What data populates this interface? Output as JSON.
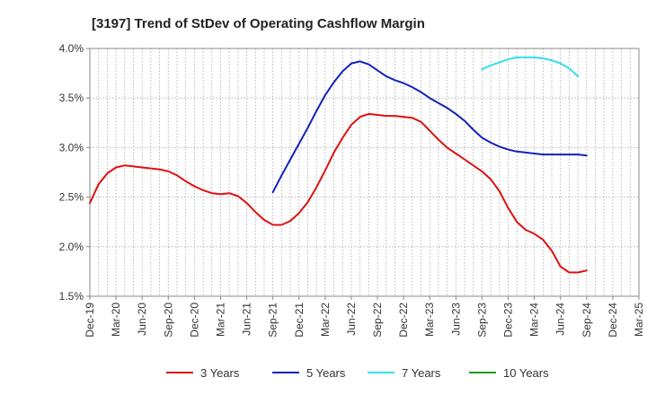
{
  "chart_data": {
    "type": "line",
    "title": "[3197]  Trend of StDev of Operating Cashflow Margin",
    "xlabel": "",
    "ylabel": "",
    "ylim": [
      1.5,
      4.0
    ],
    "y_ticks": [
      "1.5%",
      "2.0%",
      "2.5%",
      "3.0%",
      "3.5%",
      "4.0%"
    ],
    "x_ticks": [
      "Dec-19",
      "Mar-20",
      "Jun-20",
      "Sep-20",
      "Dec-20",
      "Mar-21",
      "Jun-21",
      "Sep-21",
      "Dec-21",
      "Mar-22",
      "Jun-22",
      "Sep-22",
      "Dec-22",
      "Mar-23",
      "Jun-23",
      "Sep-23",
      "Dec-23",
      "Mar-24",
      "Jun-24",
      "Sep-24",
      "Dec-24",
      "Mar-25"
    ],
    "grid": true,
    "legend_position": "bottom",
    "series": [
      {
        "name": "3 Years",
        "color": "#dd1111",
        "points": [
          [
            "Dec-19",
            2.44
          ],
          [
            "Jan-20",
            2.63
          ],
          [
            "Feb-20",
            2.74
          ],
          [
            "Mar-20",
            2.8
          ],
          [
            "Apr-20",
            2.82
          ],
          [
            "May-20",
            2.81
          ],
          [
            "Jun-20",
            2.8
          ],
          [
            "Jul-20",
            2.79
          ],
          [
            "Aug-20",
            2.78
          ],
          [
            "Sep-20",
            2.76
          ],
          [
            "Oct-20",
            2.72
          ],
          [
            "Nov-20",
            2.66
          ],
          [
            "Dec-20",
            2.61
          ],
          [
            "Jan-21",
            2.57
          ],
          [
            "Feb-21",
            2.54
          ],
          [
            "Mar-21",
            2.53
          ],
          [
            "Apr-21",
            2.54
          ],
          [
            "May-21",
            2.51
          ],
          [
            "Jun-21",
            2.44
          ],
          [
            "Jul-21",
            2.35
          ],
          [
            "Aug-21",
            2.27
          ],
          [
            "Sep-21",
            2.22
          ],
          [
            "Oct-21",
            2.22
          ],
          [
            "Nov-21",
            2.26
          ],
          [
            "Dec-21",
            2.34
          ],
          [
            "Jan-22",
            2.45
          ],
          [
            "Feb-22",
            2.6
          ],
          [
            "Mar-22",
            2.77
          ],
          [
            "Apr-22",
            2.95
          ],
          [
            "May-22",
            3.1
          ],
          [
            "Jun-22",
            3.23
          ],
          [
            "Jul-22",
            3.31
          ],
          [
            "Aug-22",
            3.34
          ],
          [
            "Sep-22",
            3.33
          ],
          [
            "Oct-22",
            3.32
          ],
          [
            "Nov-22",
            3.32
          ],
          [
            "Dec-22",
            3.31
          ],
          [
            "Jan-23",
            3.3
          ],
          [
            "Feb-23",
            3.26
          ],
          [
            "Mar-23",
            3.17
          ],
          [
            "Apr-23",
            3.08
          ],
          [
            "May-23",
            3.0
          ],
          [
            "Jun-23",
            2.94
          ],
          [
            "Jul-23",
            2.88
          ],
          [
            "Aug-23",
            2.82
          ],
          [
            "Sep-23",
            2.76
          ],
          [
            "Oct-23",
            2.68
          ],
          [
            "Nov-23",
            2.56
          ],
          [
            "Dec-23",
            2.39
          ],
          [
            "Jan-24",
            2.25
          ],
          [
            "Feb-24",
            2.17
          ],
          [
            "Mar-24",
            2.13
          ],
          [
            "Apr-24",
            2.07
          ],
          [
            "May-24",
            1.96
          ],
          [
            "Jun-24",
            1.8
          ],
          [
            "Jul-24",
            1.74
          ],
          [
            "Aug-24",
            1.74
          ],
          [
            "Sep-24",
            1.76
          ]
        ]
      },
      {
        "name": "5 Years",
        "color": "#1122bb",
        "points": [
          [
            "Sep-21",
            2.55
          ],
          [
            "Oct-21",
            2.72
          ],
          [
            "Nov-21",
            2.88
          ],
          [
            "Dec-21",
            3.04
          ],
          [
            "Jan-22",
            3.2
          ],
          [
            "Feb-22",
            3.37
          ],
          [
            "Mar-22",
            3.53
          ],
          [
            "Apr-22",
            3.66
          ],
          [
            "May-22",
            3.77
          ],
          [
            "Jun-22",
            3.85
          ],
          [
            "Jul-22",
            3.87
          ],
          [
            "Aug-22",
            3.84
          ],
          [
            "Sep-22",
            3.78
          ],
          [
            "Oct-22",
            3.72
          ],
          [
            "Nov-22",
            3.68
          ],
          [
            "Dec-22",
            3.65
          ],
          [
            "Jan-23",
            3.61
          ],
          [
            "Feb-23",
            3.56
          ],
          [
            "Mar-23",
            3.5
          ],
          [
            "Apr-23",
            3.45
          ],
          [
            "May-23",
            3.4
          ],
          [
            "Jun-23",
            3.34
          ],
          [
            "Jul-23",
            3.27
          ],
          [
            "Aug-23",
            3.18
          ],
          [
            "Sep-23",
            3.1
          ],
          [
            "Oct-23",
            3.05
          ],
          [
            "Nov-23",
            3.01
          ],
          [
            "Dec-23",
            2.98
          ],
          [
            "Jan-24",
            2.96
          ],
          [
            "Feb-24",
            2.95
          ],
          [
            "Mar-24",
            2.94
          ],
          [
            "Apr-24",
            2.93
          ],
          [
            "May-24",
            2.93
          ],
          [
            "Jun-24",
            2.93
          ],
          [
            "Jul-24",
            2.93
          ],
          [
            "Aug-24",
            2.93
          ],
          [
            "Sep-24",
            2.92
          ]
        ]
      },
      {
        "name": "7 Years",
        "color": "#33e0ee",
        "points": [
          [
            "Sep-23",
            3.79
          ],
          [
            "Oct-23",
            3.83
          ],
          [
            "Nov-23",
            3.86
          ],
          [
            "Dec-23",
            3.89
          ],
          [
            "Jan-24",
            3.91
          ],
          [
            "Feb-24",
            3.91
          ],
          [
            "Mar-24",
            3.91
          ],
          [
            "Apr-24",
            3.9
          ],
          [
            "May-24",
            3.88
          ],
          [
            "Jun-24",
            3.85
          ],
          [
            "Jul-24",
            3.8
          ],
          [
            "Aug-24",
            3.72
          ]
        ]
      },
      {
        "name": "10 Years",
        "color": "#229922",
        "points": []
      }
    ]
  }
}
